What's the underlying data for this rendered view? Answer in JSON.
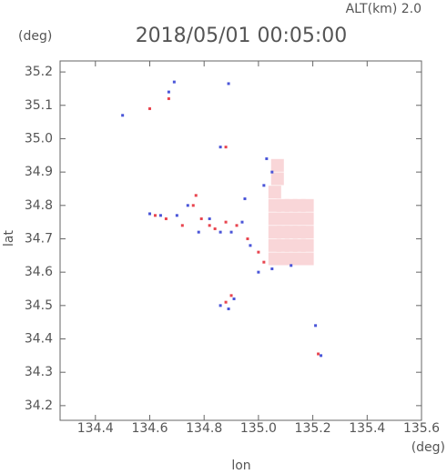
{
  "chart_data": {
    "type": "scatter",
    "annotation": "ALT(km) 2.0",
    "title": "2018/05/01 00:05:00",
    "y_unit": "(deg)",
    "x_unit": "(deg)",
    "ylabel": "lat",
    "xlabel": "lon",
    "xlim": [
      134.27,
      135.6
    ],
    "ylim": [
      34.156,
      35.233
    ],
    "xticks": [
      134.4,
      134.6,
      134.8,
      {
        "value": 135,
        "label": "135.0"
      },
      135.2,
      135.4,
      135.6
    ],
    "yticks": [
      34.2,
      34.3,
      34.4,
      34.5,
      34.6,
      34.7,
      34.8,
      34.9,
      {
        "value": 35,
        "label": "35.0"
      },
      35.1,
      35.2
    ],
    "series": [
      {
        "color": "#f9d6d8",
        "x": [
          135.06,
          135.09,
          135.12,
          135.15,
          135.18,
          135.06,
          135.09,
          135.12,
          135.15,
          135.18,
          135.06,
          135.09,
          135.12,
          135.15,
          135.18,
          135.06,
          135.09,
          135.12,
          135.15,
          135.18,
          135.06,
          135.09,
          135.12,
          135.15,
          135.18,
          135.06,
          135.07,
          135.07
        ],
        "y": [
          34.64,
          34.64,
          34.64,
          34.64,
          34.64,
          34.68,
          34.68,
          34.68,
          34.68,
          34.68,
          34.72,
          34.72,
          34.72,
          34.72,
          34.72,
          34.76,
          34.76,
          34.76,
          34.76,
          34.76,
          34.8,
          34.8,
          34.8,
          34.8,
          34.8,
          34.84,
          34.88,
          34.92
        ]
      },
      {
        "color": "#e8454f",
        "x": [
          134.62,
          134.66,
          134.72,
          134.77,
          134.76,
          134.79,
          134.82,
          134.84,
          134.88,
          134.92,
          134.96,
          135.0,
          135.02,
          134.88,
          134.9,
          135.22,
          134.67,
          134.88,
          134.6
        ],
        "y": [
          34.77,
          34.76,
          34.74,
          34.83,
          34.8,
          34.76,
          34.74,
          34.73,
          34.75,
          34.74,
          34.7,
          34.66,
          34.63,
          34.51,
          34.53,
          34.355,
          35.12,
          34.975,
          35.09
        ]
      },
      {
        "color": "#4a55d8",
        "x": [
          134.5,
          134.67,
          134.69,
          134.89,
          134.86,
          134.6,
          134.64,
          134.7,
          134.74,
          134.78,
          134.82,
          134.86,
          134.9,
          134.94,
          134.95,
          134.97,
          135.0,
          135.05,
          134.86,
          134.91,
          134.89,
          135.21,
          135.23,
          135.03,
          135.05,
          135.02,
          135.12
        ],
        "y": [
          35.07,
          35.14,
          35.17,
          35.165,
          34.975,
          34.775,
          34.77,
          34.77,
          34.8,
          34.72,
          34.76,
          34.72,
          34.72,
          34.75,
          34.82,
          34.68,
          34.6,
          34.61,
          34.5,
          34.52,
          34.49,
          34.44,
          34.35,
          34.94,
          34.9,
          34.86,
          34.62
        ]
      }
    ]
  }
}
